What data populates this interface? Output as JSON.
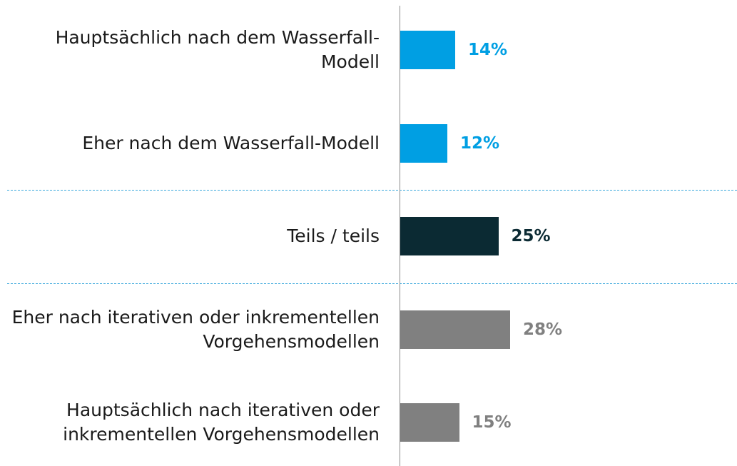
{
  "chart_data": {
    "type": "bar",
    "categories": [
      "Hauptsächlich nach dem Wasserfall-Modell",
      "Eher nach dem Wasserfall-Modell",
      "Teils / teils",
      "Eher nach iterativen oder inkrementellen Vorgehensmodellen",
      "Hauptsächlich nach iterativen oder inkrementellen Vorgehensmodellen"
    ],
    "values": [
      14,
      12,
      25,
      28,
      15
    ],
    "value_labels": [
      "14%",
      "12%",
      "25%",
      "28%",
      "15%"
    ],
    "colors": [
      "#009fe3",
      "#009fe3",
      "#0b2a33",
      "#808080",
      "#808080"
    ]
  }
}
